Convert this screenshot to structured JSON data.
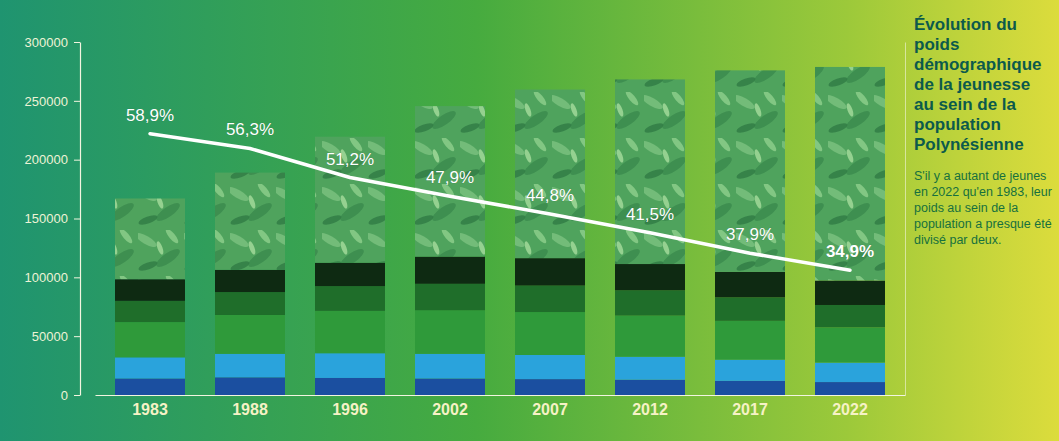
{
  "chart_data": {
    "type": "bar",
    "title": "Évolution du poids démographique de la jeunesse au sein de la population Polynésienne",
    "subtitle": "S'il y a autant de jeunes en 2022 qu'en 1983, leur poids au sein de la population a presque été divisé par deux.",
    "categories": [
      "1983",
      "1988",
      "1996",
      "2002",
      "2007",
      "2012",
      "2017",
      "2022"
    ],
    "stacked": true,
    "data_labels": true,
    "ylim": [
      0,
      300000
    ],
    "yticks": [
      0,
      50000,
      100000,
      150000,
      200000,
      250000,
      300000
    ],
    "y2lim": [
      13,
      75
    ],
    "y2ticks": [],
    "series": [
      {
        "type": "bar",
        "color": "#1b4fa0",
        "values": [
          14000,
          15000,
          14500,
          14000,
          13500,
          13000,
          12000,
          11000
        ]
      },
      {
        "type": "bar",
        "color": "#2aa3dc",
        "values": [
          18000,
          20000,
          21000,
          21000,
          20500,
          19500,
          18000,
          16500
        ]
      },
      {
        "type": "bar",
        "color": "#2f9a3a",
        "values": [
          30000,
          33000,
          36000,
          37000,
          36500,
          35000,
          33000,
          30000
        ]
      },
      {
        "type": "bar",
        "color": "#1f6e2a",
        "values": [
          18000,
          19500,
          21000,
          22500,
          22500,
          21500,
          20000,
          19000
        ]
      },
      {
        "type": "bar",
        "color": "#0e2a12",
        "values": [
          18400,
          18900,
          19900,
          23100,
          23300,
          22300,
          21600,
          20800
        ]
      },
      {
        "type": "bar",
        "color": "#4fa35d",
        "values": [
          68600,
          82600,
          107100,
          127900,
          143300,
          156900,
          171300,
          181500
        ]
      },
      {
        "type": "line",
        "axis": "y2",
        "color": "#ffffff",
        "values": [
          58.9,
          56.3,
          51.2,
          47.9,
          44.8,
          41.5,
          37.9,
          34.9
        ],
        "value_labels": [
          "58,9%",
          "56,3%",
          "51,2%",
          "47,9%",
          "44,8%",
          "41,5%",
          "37,9%",
          "34,9%"
        ]
      }
    ]
  }
}
